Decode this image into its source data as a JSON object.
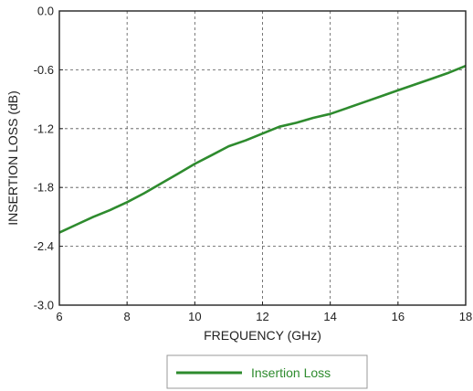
{
  "chart_data": {
    "type": "line",
    "xlabel": "FREQUENCY (GHz)",
    "ylabel": "INSERTION LOSS (dB)",
    "xlim": [
      6,
      18
    ],
    "ylim": [
      -3.0,
      0.0
    ],
    "xticks": [
      6,
      8,
      10,
      12,
      14,
      16,
      18
    ],
    "xtick_labels": [
      "6",
      "8",
      "10",
      "12",
      "14",
      "16",
      "18"
    ],
    "yticks": [
      0.0,
      -0.6,
      -1.2,
      -1.8,
      -2.4,
      -3.0
    ],
    "ytick_labels": [
      "0.0",
      "-0.6",
      "-1.2",
      "-1.8",
      "-2.4",
      "-3.0"
    ],
    "grid": true,
    "legend_position": "bottom-center",
    "series": [
      {
        "name": "Insertion Loss",
        "color": "#2e8b2e",
        "x": [
          6.0,
          6.5,
          7.0,
          7.5,
          8.0,
          8.5,
          9.0,
          9.5,
          10.0,
          10.5,
          11.0,
          11.5,
          12.0,
          12.5,
          13.0,
          13.5,
          14.0,
          14.5,
          15.0,
          15.5,
          16.0,
          16.5,
          17.0,
          17.5,
          18.0
        ],
        "y": [
          -2.26,
          -2.18,
          -2.1,
          -2.03,
          -1.95,
          -1.86,
          -1.76,
          -1.66,
          -1.56,
          -1.47,
          -1.38,
          -1.32,
          -1.25,
          -1.18,
          -1.14,
          -1.09,
          -1.05,
          -0.99,
          -0.93,
          -0.87,
          -0.81,
          -0.75,
          -0.69,
          -0.63,
          -0.56
        ]
      }
    ]
  }
}
